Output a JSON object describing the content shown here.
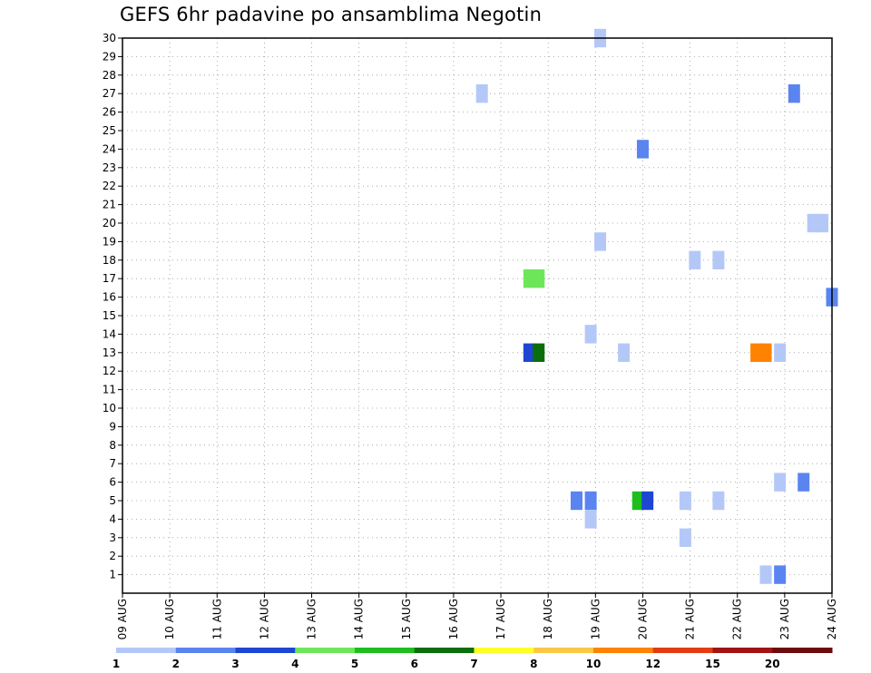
{
  "chart_data": {
    "type": "heatmap",
    "title": "GEFS 6hr padavine po ansamblima Negotin",
    "xlabel": "",
    "ylabel": "",
    "x_tick_labels": [
      "09 AUG",
      "10 AUG",
      "11 AUG",
      "12 AUG",
      "13 AUG",
      "14 AUG",
      "15 AUG",
      "16 AUG",
      "17 AUG",
      "18 AUG",
      "19 AUG",
      "20 AUG",
      "21 AUG",
      "22 AUG",
      "23 AUG",
      "24 AUG"
    ],
    "y_tick_labels": [
      "1",
      "2",
      "3",
      "4",
      "5",
      "6",
      "7",
      "8",
      "9",
      "10",
      "11",
      "12",
      "13",
      "14",
      "15",
      "16",
      "17",
      "18",
      "19",
      "20",
      "21",
      "22",
      "23",
      "24",
      "25",
      "26",
      "27",
      "28",
      "29",
      "30"
    ],
    "x_range_days": [
      0,
      15
    ],
    "y_range": [
      0,
      30
    ],
    "grid": true,
    "legend": {
      "placement": "bottom",
      "colors": [
        "#b4c8f8",
        "#5a84f0",
        "#1e46d2",
        "#6ee65a",
        "#1ebe1e",
        "#0a6e0a",
        "#ffff28",
        "#fac846",
        "#ff8200",
        "#e13c14",
        "#a01414",
        "#6e0a0a"
      ],
      "labels": [
        "1",
        "2",
        "3",
        "4",
        "5",
        "6",
        "7",
        "8",
        "10",
        "12",
        "15",
        "20"
      ]
    },
    "cells": [
      {
        "day": 10.1,
        "member": 30,
        "class": 1
      },
      {
        "day": 7.6,
        "member": 27,
        "class": 1
      },
      {
        "day": 14.2,
        "member": 27,
        "class": 2
      },
      {
        "day": 11.0,
        "member": 24,
        "class": 2
      },
      {
        "day": 14.6,
        "member": 20,
        "class": 1
      },
      {
        "day": 14.8,
        "member": 20,
        "class": 1
      },
      {
        "day": 10.1,
        "member": 19,
        "class": 1
      },
      {
        "day": 12.1,
        "member": 18,
        "class": 1
      },
      {
        "day": 12.6,
        "member": 18,
        "class": 1
      },
      {
        "day": 8.6,
        "member": 17,
        "class": 4
      },
      {
        "day": 8.8,
        "member": 17,
        "class": 4
      },
      {
        "day": 15.0,
        "member": 16,
        "class": 2
      },
      {
        "day": 9.9,
        "member": 14,
        "class": 1
      },
      {
        "day": 8.6,
        "member": 13,
        "class": 3
      },
      {
        "day": 8.8,
        "member": 13,
        "class": 6
      },
      {
        "day": 10.6,
        "member": 13,
        "class": 1
      },
      {
        "day": 13.4,
        "member": 13,
        "class": 9
      },
      {
        "day": 13.6,
        "member": 13,
        "class": 9
      },
      {
        "day": 13.9,
        "member": 13,
        "class": 1
      },
      {
        "day": 13.9,
        "member": 6,
        "class": 1
      },
      {
        "day": 14.4,
        "member": 6,
        "class": 2
      },
      {
        "day": 9.6,
        "member": 5,
        "class": 2
      },
      {
        "day": 9.9,
        "member": 5,
        "class": 2
      },
      {
        "day": 10.9,
        "member": 5,
        "class": 5
      },
      {
        "day": 11.1,
        "member": 5,
        "class": 3
      },
      {
        "day": 11.9,
        "member": 5,
        "class": 1
      },
      {
        "day": 12.6,
        "member": 5,
        "class": 1
      },
      {
        "day": 9.9,
        "member": 4,
        "class": 1
      },
      {
        "day": 11.9,
        "member": 3,
        "class": 1
      },
      {
        "day": 13.6,
        "member": 1,
        "class": 1
      },
      {
        "day": 13.9,
        "member": 1,
        "class": 2
      }
    ]
  }
}
